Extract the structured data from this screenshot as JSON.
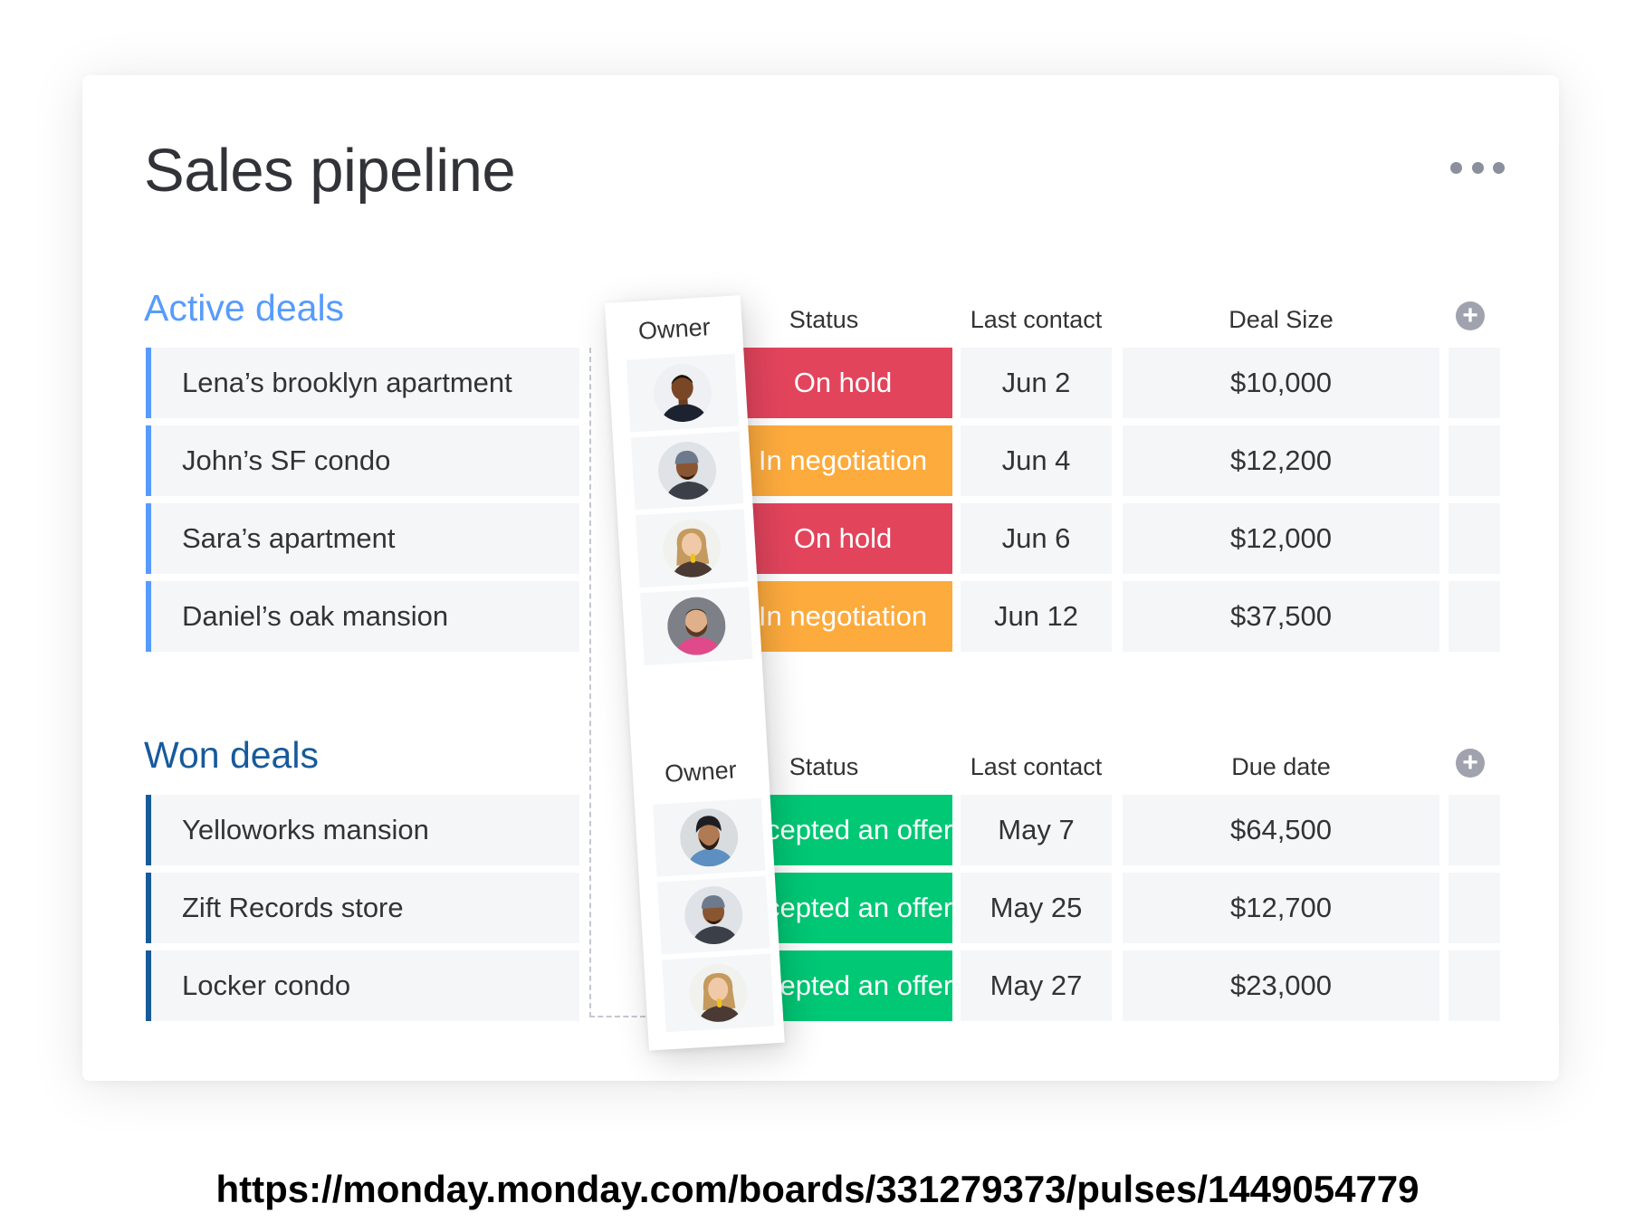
{
  "board": {
    "title": "Sales pipeline"
  },
  "menu": {
    "icon": "more-dots-icon"
  },
  "active_group": {
    "title": "Active deals",
    "color": "#579bfc",
    "headers": {
      "owner": "Owner",
      "status": "Status",
      "last_contact": "Last contact",
      "deal_size": "Deal Size"
    },
    "add_column_icon": "plus-circle-icon",
    "rows": [
      {
        "name": "Lena’s brooklyn apartment",
        "status": "On hold",
        "status_color": "#e2445c",
        "last_contact": "Jun 2",
        "deal_size": "$10,000",
        "owner_icon": "avatar-man-icon"
      },
      {
        "name": "John’s SF condo",
        "status": "In negotiation",
        "status_color": "#fdab3d",
        "last_contact": "Jun 4",
        "deal_size": "$12,200",
        "owner_icon": "avatar-man-cap-icon"
      },
      {
        "name": "Sara’s apartment",
        "status": "On hold",
        "status_color": "#e2445c",
        "last_contact": "Jun 6",
        "deal_size": "$12,000",
        "owner_icon": "avatar-woman-icon"
      },
      {
        "name": "Daniel’s oak mansion",
        "status": "In negotiation",
        "status_color": "#fdab3d",
        "last_contact": "Jun 12",
        "deal_size": "$37,500",
        "owner_icon": "avatar-bearded-man-icon"
      }
    ]
  },
  "won_group": {
    "title": "Won deals",
    "color": "#175a9b",
    "headers": {
      "owner": "Owner",
      "status": "Status",
      "last_contact": "Last contact",
      "due_date": "Due date"
    },
    "add_column_icon": "plus-circle-icon",
    "rows": [
      {
        "name": "Yelloworks mansion",
        "status": "Accepted an offer",
        "status_color": "#00c875",
        "last_contact": "May 7",
        "due_date": "$64,500",
        "owner_icon": "avatar-turban-man-icon"
      },
      {
        "name": "Zift Records store",
        "status": "Accepted an offer",
        "status_color": "#00c875",
        "last_contact": "May 25",
        "due_date": "$12,700",
        "owner_icon": "avatar-man-cap-icon"
      },
      {
        "name": "Locker condo",
        "status": "Accepted an offer",
        "status_color": "#00c875",
        "last_contact": "May 27",
        "due_date": "$23,000",
        "owner_icon": "avatar-woman-icon"
      }
    ]
  },
  "footer": {
    "url": "https://monday.monday.com/boards/331279373/pulses/1449054779"
  }
}
